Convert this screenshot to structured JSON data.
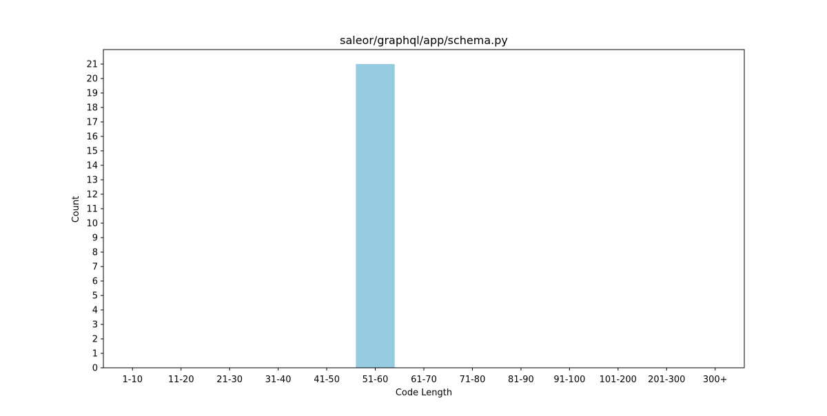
{
  "chart_data": {
    "type": "bar",
    "title": "saleor/graphql/app/schema.py",
    "xlabel": "Code Length",
    "ylabel": "Count",
    "categories": [
      "1-10",
      "11-20",
      "21-30",
      "31-40",
      "41-50",
      "51-60",
      "61-70",
      "71-80",
      "81-90",
      "91-100",
      "101-200",
      "201-300",
      "300+"
    ],
    "values": [
      0,
      0,
      0,
      0,
      0,
      21,
      0,
      0,
      0,
      0,
      0,
      0,
      0
    ],
    "ylim": [
      0,
      22
    ],
    "yticks": [
      0,
      1,
      2,
      3,
      4,
      5,
      6,
      7,
      8,
      9,
      10,
      11,
      12,
      13,
      14,
      15,
      16,
      17,
      18,
      19,
      20,
      21
    ],
    "grid": false,
    "bar_color": "#96cadf"
  }
}
